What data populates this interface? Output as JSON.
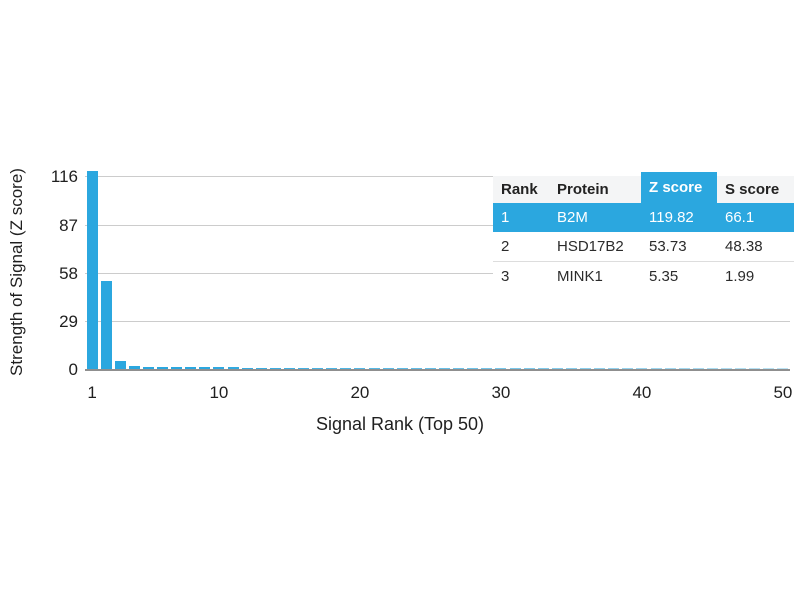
{
  "chart_data": {
    "type": "bar",
    "title": "",
    "xlabel": "Signal Rank (Top 50)",
    "ylabel": "Strength of Signal (Z score)",
    "x_ticks": [
      1,
      10,
      20,
      30,
      40,
      50
    ],
    "y_ticks": [
      0,
      29,
      58,
      87,
      116
    ],
    "ylim": [
      0,
      126
    ],
    "grid": "horizontal-only",
    "legend": "none",
    "ranks": [
      1,
      2,
      3,
      4,
      5,
      6,
      7,
      8,
      9,
      10,
      11,
      12,
      13,
      14,
      15,
      16,
      17,
      18,
      19,
      20,
      21,
      22,
      23,
      24,
      25,
      26,
      27,
      28,
      29,
      30,
      31,
      32,
      33,
      34,
      35,
      36,
      37,
      38,
      39,
      40,
      41,
      42,
      43,
      44,
      45,
      46,
      47,
      48,
      49,
      50
    ],
    "values": [
      119.82,
      53.73,
      5.35,
      2.4,
      1.9,
      1.8,
      1.75,
      1.7,
      1.65,
      1.6,
      1.55,
      1.5,
      1.48,
      1.45,
      1.42,
      1.4,
      1.38,
      1.35,
      1.32,
      1.3,
      1.28,
      1.26,
      1.24,
      1.22,
      1.2,
      1.18,
      1.16,
      1.14,
      1.12,
      1.1,
      1.08,
      1.06,
      1.05,
      1.04,
      1.03,
      1.02,
      1.01,
      1.0,
      0.99,
      0.98,
      0.97,
      0.96,
      0.95,
      0.94,
      0.93,
      0.92,
      0.91,
      0.9,
      0.89,
      0.88
    ]
  },
  "table": {
    "columns": [
      "Rank",
      "Protein",
      "Z score",
      "S score"
    ],
    "highlight_column_index": 2,
    "rows": [
      {
        "cells": [
          "1",
          "B2M",
          "119.82",
          "66.1"
        ],
        "highlight": true
      },
      {
        "cells": [
          "2",
          "HSD17B2",
          "53.73",
          "48.38"
        ],
        "highlight": false
      },
      {
        "cells": [
          "3",
          "MINK1",
          "5.35",
          "1.99"
        ],
        "highlight": false
      }
    ]
  },
  "colors": {
    "accent": "#2BA7DF",
    "bar_fade_to": "#BCE3F4",
    "grid": "#CCCCCC",
    "axis": "#8F8F8F",
    "header_bg": "#F4F5F6",
    "text": "#1F1F1F",
    "row_separator": "#DDDDDD"
  }
}
